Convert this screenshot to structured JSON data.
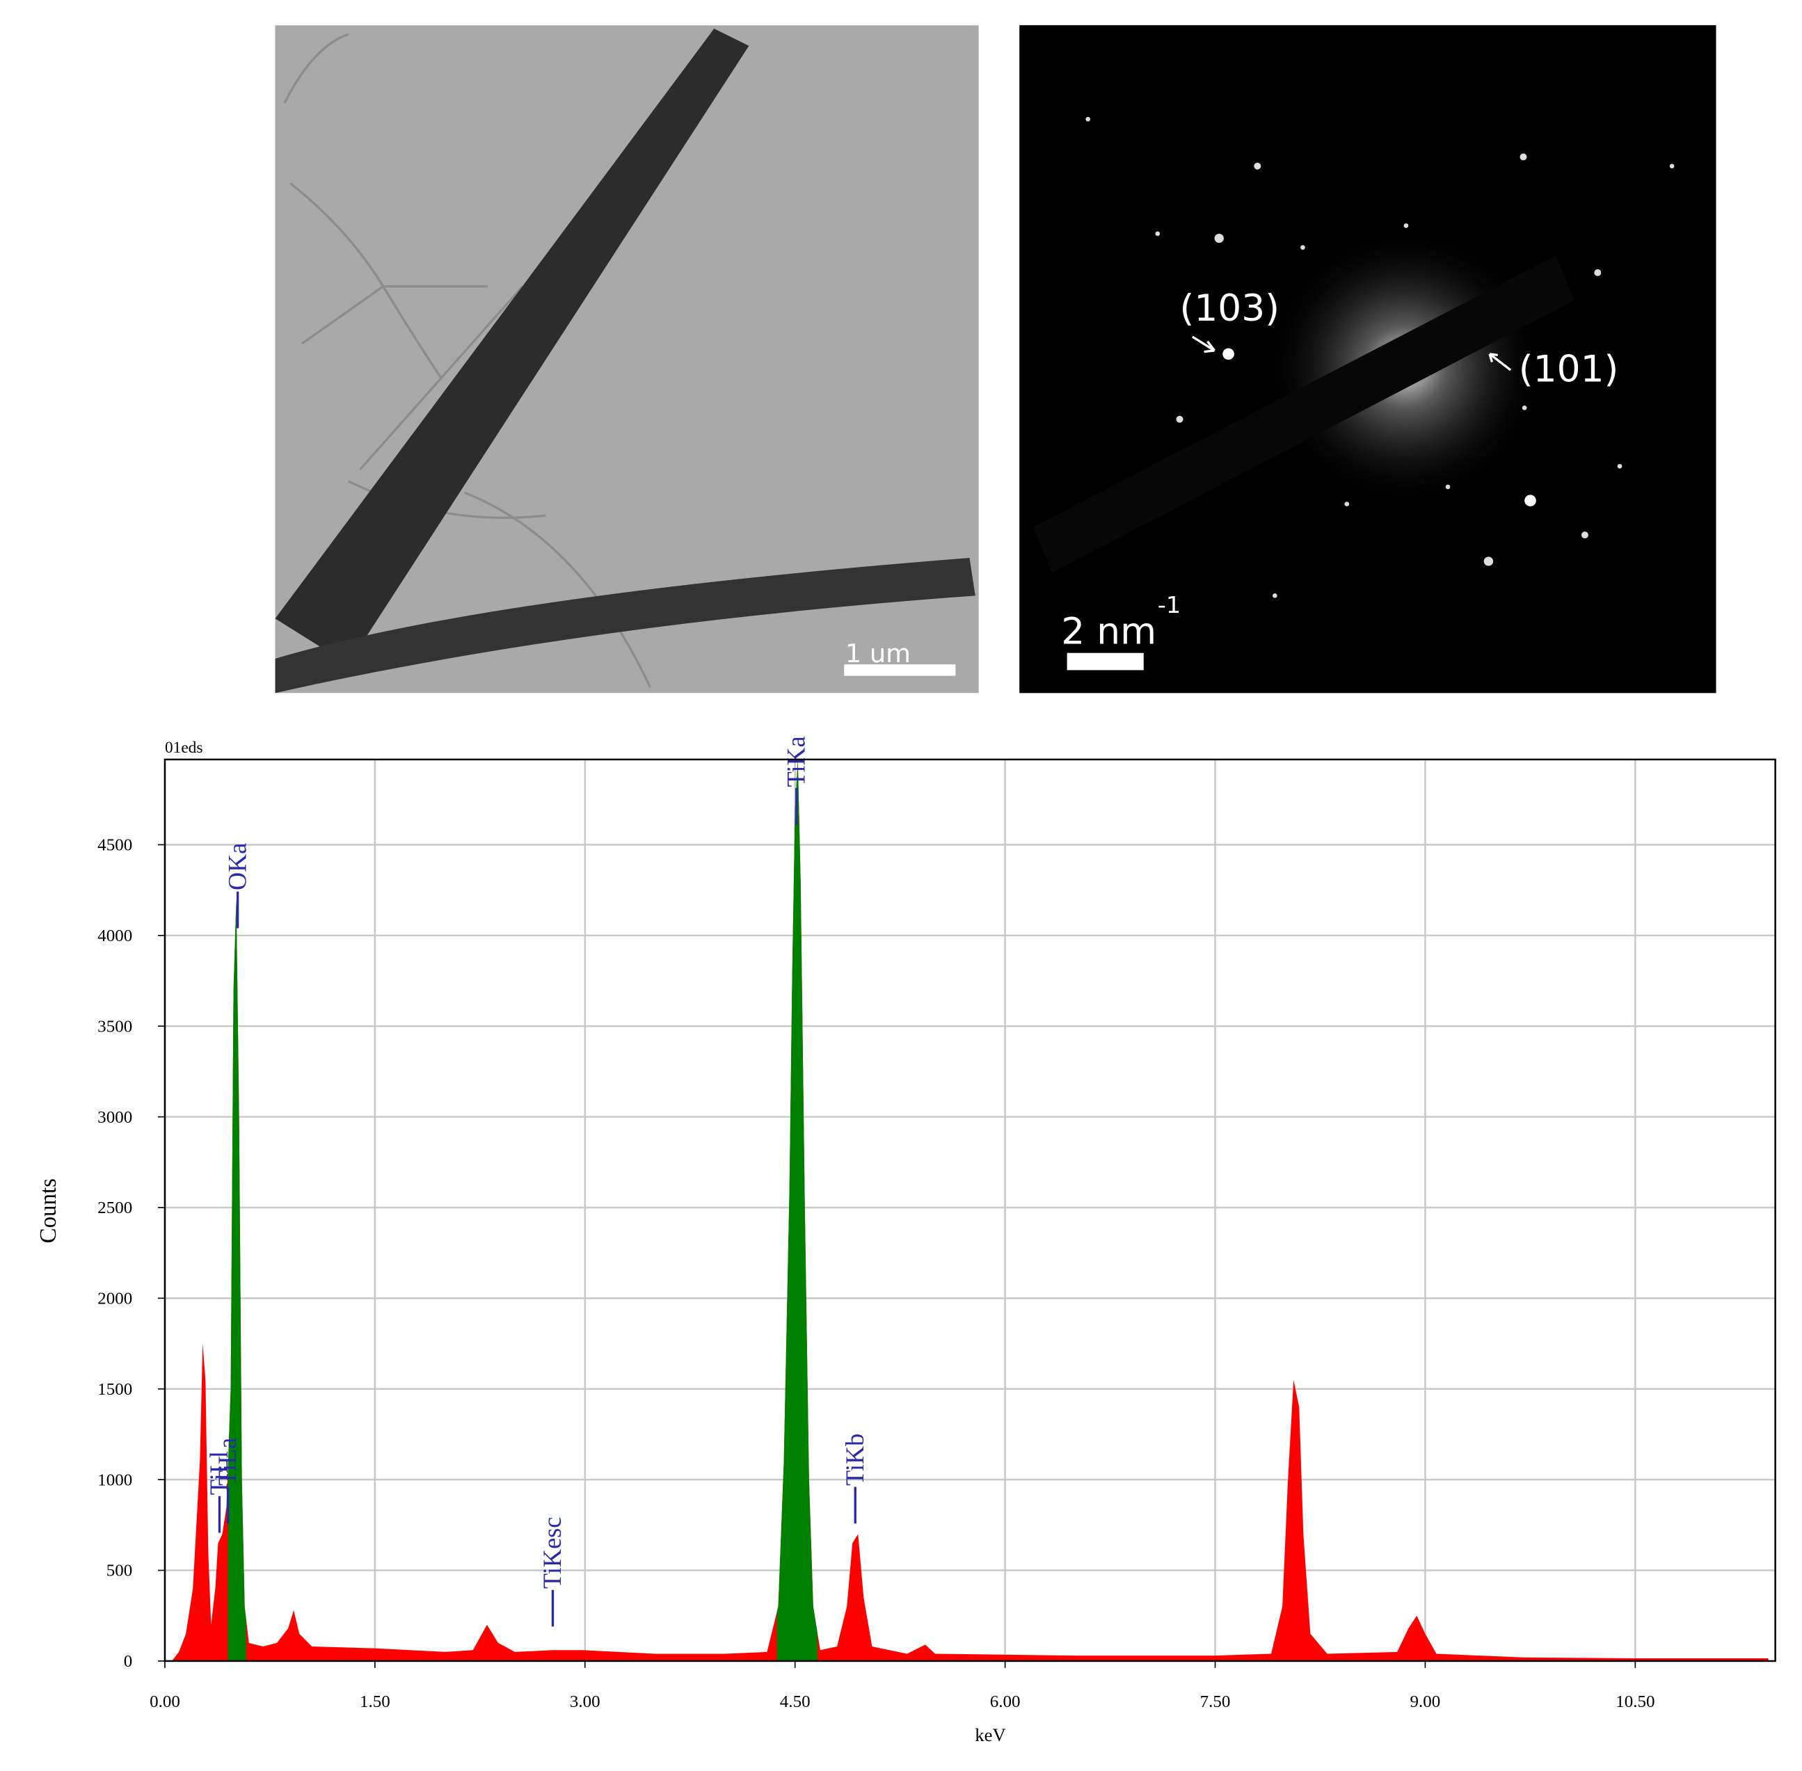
{
  "tem_image": {
    "scale_bar": "1 um"
  },
  "saed_pattern": {
    "scale_bar": "2 nm",
    "scale_bar_exponent": "-1",
    "annotations": [
      "(103)",
      "(101)"
    ]
  },
  "chart_data": {
    "type": "area",
    "title": "01eds",
    "xlabel": "keV",
    "ylabel": "Counts",
    "xlim": [
      0,
      11.5
    ],
    "ylim": [
      0,
      4970
    ],
    "xticks": [
      {
        "value": 0,
        "label": "0.00"
      },
      {
        "value": 1.5,
        "label": "1.50"
      },
      {
        "value": 3,
        "label": "3.00"
      },
      {
        "value": 4.5,
        "label": "4.50"
      },
      {
        "value": 6,
        "label": "6.00"
      },
      {
        "value": 7.5,
        "label": "7.50"
      },
      {
        "value": 9,
        "label": "9.00"
      },
      {
        "value": 10.5,
        "label": "10.50"
      }
    ],
    "yticks": [
      0,
      500,
      1000,
      1500,
      2000,
      2500,
      3000,
      3500,
      4000,
      4500
    ],
    "grid": true,
    "series": [
      {
        "color": "#ff0000",
        "x": [
          0.05,
          0.1,
          0.15,
          0.2,
          0.25,
          0.27,
          0.29,
          0.31,
          0.33,
          0.36,
          0.38,
          0.41,
          0.44,
          0.47,
          0.49,
          0.51,
          0.53,
          0.55,
          0.57,
          0.6,
          0.7,
          0.8,
          0.88,
          0.92,
          0.96,
          1.05,
          1.5,
          2.0,
          2.2,
          2.3,
          2.38,
          2.5,
          2.77,
          2.98,
          3.5,
          4.0,
          4.3,
          4.38,
          4.42,
          4.46,
          4.48,
          4.5,
          4.52,
          4.54,
          4.57,
          4.6,
          4.63,
          4.68,
          4.8,
          4.87,
          4.91,
          4.95,
          4.99,
          5.05,
          5.3,
          5.43,
          5.5,
          6.5,
          7.5,
          7.9,
          7.98,
          8.02,
          8.06,
          8.1,
          8.13,
          8.18,
          8.3,
          8.8,
          8.88,
          8.94,
          9.0,
          9.08,
          9.7,
          10.5,
          11.45
        ],
        "values": [
          0,
          50,
          150,
          400,
          1100,
          1750,
          1550,
          600,
          200,
          400,
          650,
          700,
          850,
          1500,
          3700,
          4200,
          3000,
          1000,
          300,
          100,
          80,
          100,
          180,
          280,
          150,
          80,
          70,
          50,
          60,
          200,
          100,
          50,
          60,
          60,
          40,
          40,
          50,
          300,
          1100,
          2600,
          3800,
          4700,
          4970,
          4300,
          2500,
          1000,
          300,
          60,
          80,
          300,
          650,
          700,
          350,
          80,
          40,
          90,
          40,
          30,
          30,
          40,
          300,
          1000,
          1550,
          1400,
          700,
          150,
          40,
          50,
          180,
          250,
          150,
          40,
          20,
          15,
          15
        ]
      }
    ],
    "roi": [
      {
        "xlim": [
          0.45,
          0.58
        ],
        "color": "#008000"
      },
      {
        "xlim": [
          4.37,
          4.66
        ],
        "color": "#008000"
      }
    ],
    "peak_labels": [
      {
        "text": "OKa",
        "x": 0.52,
        "y": 4040
      },
      {
        "text": "TiKa",
        "x": 4.51,
        "y": 4610
      },
      {
        "text": "TiKb",
        "x": 4.93,
        "y": 758
      },
      {
        "text": "TiKesc",
        "x": 2.77,
        "y": 190
      },
      {
        "text": "TiLl",
        "x": 0.39,
        "y": 707
      },
      {
        "text": "TiLa",
        "x": 0.45,
        "y": 758
      }
    ],
    "peak_label_color": "#2a2aa8"
  }
}
